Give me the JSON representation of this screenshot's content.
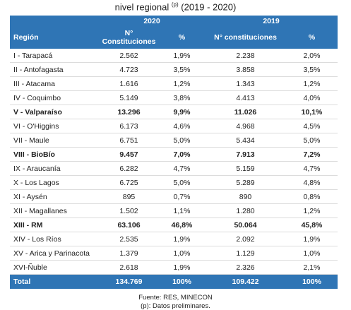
{
  "title": {
    "text": "nivel regional",
    "superscript": "(p)",
    "period": "(2019 - 2020)"
  },
  "table": {
    "header": {
      "years": [
        "2020",
        "2019"
      ],
      "columns": [
        "Región",
        "N° Constituciones",
        "%",
        "N° constituciones",
        "%"
      ]
    },
    "rows": [
      [
        "I - Tarapacá",
        "2.562",
        "1,9%",
        "2.238",
        "2,0%"
      ],
      [
        "II - Antofagasta",
        "4.723",
        "3,5%",
        "3.858",
        "3,5%"
      ],
      [
        "III - Atacama",
        "1.616",
        "1,2%",
        "1.343",
        "1,2%"
      ],
      [
        "IV - Coquimbo",
        "5.149",
        "3,8%",
        "4.413",
        "4,0%"
      ],
      [
        "V - Valparaíso",
        "13.296",
        "9,9%",
        "11.026",
        "10,1%"
      ],
      [
        "VI - O'Higgins",
        "6.173",
        "4,6%",
        "4.968",
        "4,5%"
      ],
      [
        "VII - Maule",
        "6.751",
        "5,0%",
        "5.434",
        "5,0%"
      ],
      [
        "VIII - BioBío",
        "9.457",
        "7,0%",
        "7.913",
        "7,2%"
      ],
      [
        "IX - Araucanía",
        "6.282",
        "4,7%",
        "5.159",
        "4,7%"
      ],
      [
        "X - Los Lagos",
        "6.725",
        "5,0%",
        "5.289",
        "4,8%"
      ],
      [
        "XI - Aysén",
        "895",
        "0,7%",
        "890",
        "0,8%"
      ],
      [
        "XII - Magallanes",
        "1.502",
        "1,1%",
        "1.280",
        "1,2%"
      ],
      [
        "XIII - RM",
        "63.106",
        "46,8%",
        "50.064",
        "45,8%"
      ],
      [
        "XIV - Los Ríos",
        "2.535",
        "1,9%",
        "2.092",
        "1,9%"
      ],
      [
        "XV - Arica y Parinacota",
        "1.379",
        "1,0%",
        "1.129",
        "1,0%"
      ],
      [
        "XVI-Ñuble",
        "2.618",
        "1,9%",
        "2.326",
        "2,1%"
      ]
    ],
    "total": [
      "Total",
      "134.769",
      "100%",
      "109.422",
      "100%"
    ]
  },
  "footer": {
    "source": "Fuente: RES, MINECON",
    "note": "(p): Datos preliminares."
  }
}
